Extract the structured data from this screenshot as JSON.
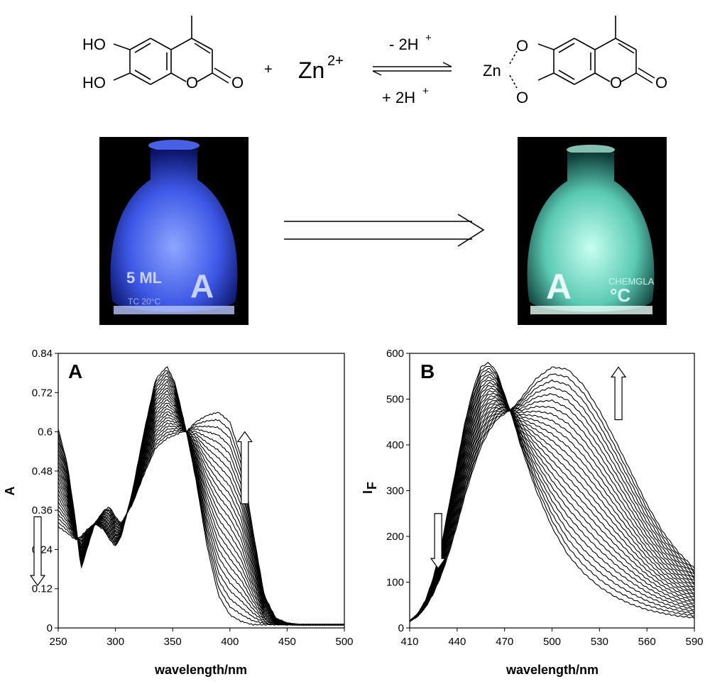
{
  "scheme": {
    "left_oh_top": "HO",
    "left_oh_bottom": "HO",
    "left_ring_o": "O",
    "left_carbonyl_o": "O",
    "plus": "+",
    "zinc_ion": "Zn",
    "zinc_charge": "2+",
    "arrow_top": "- 2H",
    "arrow_top_sup": "+",
    "arrow_bottom": "+ 2H",
    "arrow_bottom_sup": "+",
    "right_zn": "Zn",
    "right_o_top": "O",
    "right_o_bottom": "O",
    "right_ring_o": "O",
    "right_carbonyl_o": "O"
  },
  "photos": {
    "left": {
      "flask_text_1": "5 ML",
      "flask_text_2": "A",
      "flask_text_3": "TC 20°C",
      "glow_color": "#5a7bff"
    },
    "right": {
      "flask_text_1": "A",
      "flask_text_2": "CHEMGLA",
      "flask_text_3": "°C",
      "glow_color": "#7fe6d2"
    }
  },
  "colors": {
    "line": "#000000",
    "background": "#ffffff"
  },
  "chart_data": [
    {
      "type": "line",
      "panel_label": "A",
      "xlabel": "wavelength/nm",
      "ylabel": "A",
      "xlim": [
        250,
        500
      ],
      "ylim": [
        0,
        0.84
      ],
      "xticks": [
        250,
        300,
        350,
        400,
        450,
        500
      ],
      "yticks": [
        0,
        0.12,
        0.24,
        0.36,
        0.48,
        0.6,
        0.72,
        0.84
      ],
      "ytick_labels": [
        "0",
        "0.12",
        "0.24",
        "0.36",
        "0.48",
        "0.6",
        "0.72",
        "0.84"
      ],
      "grid": false,
      "series_count": 25,
      "isosbestic_points": [
        [
          281,
          0.32
        ],
        [
          362,
          0.6
        ]
      ],
      "first_series": {
        "x": [
          250,
          258,
          265,
          270,
          275,
          282,
          290,
          295,
          300,
          305,
          315,
          325,
          335,
          345,
          352,
          358,
          362,
          370,
          380,
          390,
          400,
          410,
          420,
          430,
          440,
          450,
          460,
          475,
          500
        ],
        "y": [
          0.61,
          0.5,
          0.33,
          0.18,
          0.24,
          0.32,
          0.3,
          0.27,
          0.25,
          0.28,
          0.42,
          0.6,
          0.76,
          0.8,
          0.75,
          0.66,
          0.6,
          0.46,
          0.25,
          0.1,
          0.04,
          0.02,
          0.01,
          0.01,
          0.01,
          0.01,
          0.01,
          0.01,
          0.01
        ]
      },
      "last_series": {
        "x": [
          250,
          258,
          265,
          270,
          275,
          282,
          290,
          295,
          300,
          305,
          315,
          325,
          335,
          345,
          352,
          358,
          362,
          370,
          380,
          390,
          400,
          410,
          420,
          430,
          440,
          450,
          460,
          475,
          500
        ],
        "y": [
          0.31,
          0.29,
          0.27,
          0.28,
          0.3,
          0.32,
          0.36,
          0.37,
          0.34,
          0.32,
          0.38,
          0.47,
          0.55,
          0.58,
          0.59,
          0.6,
          0.6,
          0.63,
          0.65,
          0.66,
          0.63,
          0.52,
          0.3,
          0.1,
          0.03,
          0.015,
          0.01,
          0.01,
          0.01
        ]
      },
      "arrows": [
        {
          "direction": "up",
          "x": 413,
          "y_from": 0.38,
          "y_to": 0.6
        },
        {
          "direction": "down",
          "x": 232,
          "y_from": 0.34,
          "y_to": 0.13
        }
      ]
    },
    {
      "type": "line",
      "panel_label": "B",
      "xlabel": "wavelength/nm",
      "ylabel": "IF",
      "ylabel_main": "I",
      "ylabel_sub": "F",
      "xlim": [
        410,
        590
      ],
      "ylim": [
        0,
        600
      ],
      "xticks": [
        410,
        440,
        470,
        500,
        530,
        560,
        590
      ],
      "yticks": [
        0,
        100,
        200,
        300,
        400,
        500,
        600
      ],
      "ytick_labels": [
        "0",
        "100",
        "200",
        "300",
        "400",
        "500",
        "600"
      ],
      "grid": false,
      "series_count": 25,
      "isosbestic_points": [
        [
          473,
          470
        ]
      ],
      "first_series": {
        "x": [
          410,
          415,
          420,
          425,
          430,
          435,
          440,
          445,
          450,
          455,
          460,
          465,
          470,
          475,
          480,
          490,
          500,
          510,
          520,
          530,
          540,
          550,
          560,
          570,
          580,
          590
        ],
        "y": [
          15,
          30,
          60,
          110,
          180,
          270,
          360,
          450,
          520,
          570,
          580,
          560,
          510,
          460,
          400,
          300,
          220,
          160,
          120,
          90,
          68,
          52,
          40,
          32,
          26,
          22
        ]
      },
      "last_series": {
        "x": [
          410,
          415,
          420,
          425,
          430,
          435,
          440,
          445,
          450,
          455,
          460,
          465,
          470,
          475,
          480,
          490,
          500,
          510,
          520,
          530,
          540,
          550,
          560,
          570,
          580,
          590
        ],
        "y": [
          15,
          25,
          45,
          75,
          115,
          165,
          225,
          290,
          345,
          395,
          430,
          455,
          468,
          480,
          500,
          545,
          570,
          565,
          530,
          475,
          410,
          340,
          270,
          210,
          165,
          130
        ]
      },
      "arrows": [
        {
          "direction": "up",
          "x": 542,
          "y_from": 455,
          "y_to": 570
        },
        {
          "direction": "down",
          "x": 428,
          "y_from": 250,
          "y_to": 130
        }
      ]
    }
  ]
}
